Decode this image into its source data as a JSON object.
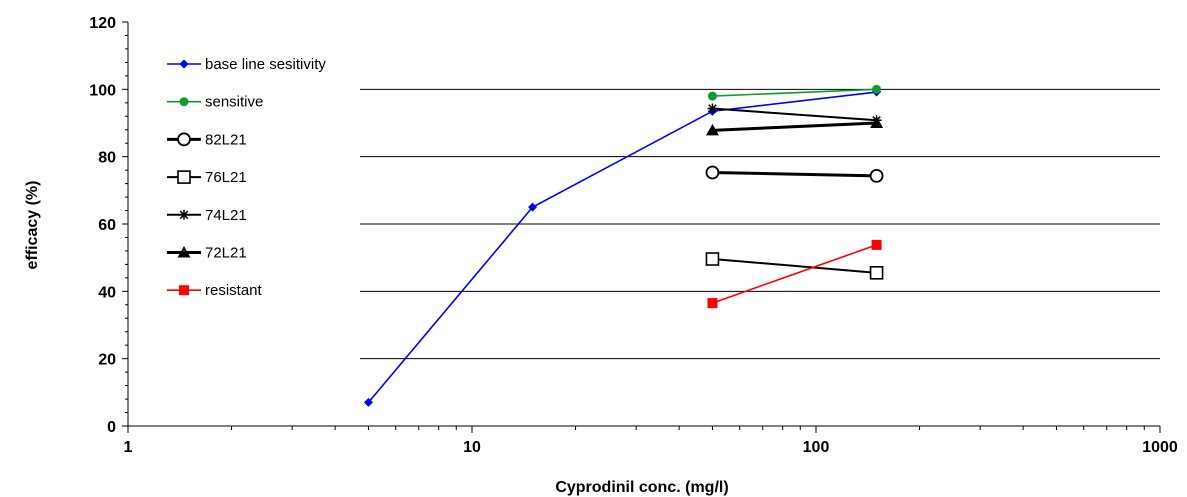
{
  "chart_data": {
    "type": "line",
    "xlabel": "Cyprodinil conc. (mg/l)",
    "ylabel": "efficacy (%)",
    "x_scale": "log",
    "xlim": [
      1,
      1000
    ],
    "ylim": [
      0,
      120
    ],
    "x_ticks": [
      "1",
      "10",
      "100",
      "1000"
    ],
    "y_ticks": [
      "0",
      "20",
      "40",
      "60",
      "80",
      "100",
      "120"
    ],
    "grid": "horizontal",
    "legend_position": "top-left",
    "series": [
      {
        "name": "base line sesitivity",
        "color": "#0000ff",
        "marker": "diamond",
        "line_weight": "thin",
        "x": [
          5,
          15,
          50,
          150
        ],
        "y": [
          7,
          65,
          93.5,
          99.2
        ]
      },
      {
        "name": "sensitive",
        "color": "#119933",
        "marker": "circle-filled",
        "line_weight": "thin",
        "x": [
          50,
          150
        ],
        "y": [
          98,
          100
        ]
      },
      {
        "name": "82L21",
        "color": "#000000",
        "marker": "circle-open",
        "line_weight": "thick",
        "x": [
          50,
          150
        ],
        "y": [
          75.3,
          74.3
        ]
      },
      {
        "name": "76L21",
        "color": "#000000",
        "marker": "square-open",
        "line_weight": "medium",
        "x": [
          50,
          150
        ],
        "y": [
          49.6,
          45.5
        ]
      },
      {
        "name": "74L21",
        "color": "#000000",
        "marker": "star",
        "line_weight": "medium",
        "x": [
          50,
          150
        ],
        "y": [
          94.3,
          90.8
        ]
      },
      {
        "name": "72L21",
        "color": "#000000",
        "marker": "triangle",
        "line_weight": "thick",
        "x": [
          50,
          150
        ],
        "y": [
          87.8,
          90
        ]
      },
      {
        "name": "resistant",
        "color": "#ff0000",
        "marker": "square-filled",
        "line_weight": "thin",
        "x": [
          50,
          150
        ],
        "y": [
          36.5,
          53.8
        ]
      }
    ]
  }
}
